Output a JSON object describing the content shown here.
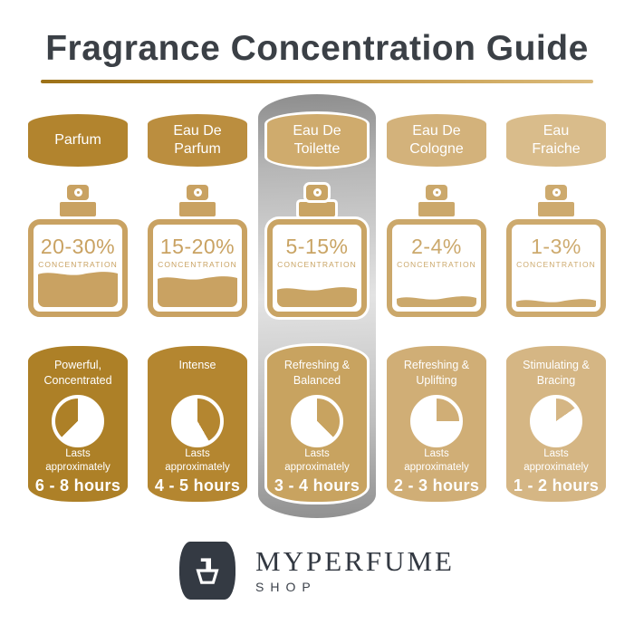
{
  "title": "Fragrance Concentration Guide",
  "labels": {
    "concentration": "CONCENTRATION",
    "lasts": "Lasts\napproximately"
  },
  "brand": {
    "name": "MYPERFUME",
    "sub": "SHOP",
    "logo_icon": "perfume-bottle-icon",
    "logo_bg": "#343a43"
  },
  "accent": {
    "title_color": "#3b4046",
    "underline_gradient": [
      "#9c7118",
      "#dcbc7e"
    ],
    "highlight_silver": [
      "#8d8d8d",
      "#e3e3e3",
      "#909090"
    ]
  },
  "columns": [
    {
      "name": "Parfum",
      "concentration": "20-30%",
      "description": "Powerful,\nConcentrated",
      "duration": "6 - 8 hours",
      "fill_percent": 44,
      "pie_gap": [
        225,
        360
      ],
      "highlighted": false,
      "colors": {
        "banner": "#b2842e",
        "card": "#ad8027",
        "bottle": "#c9a262"
      }
    },
    {
      "name": "Eau De\nParfum",
      "concentration": "15-20%",
      "description": "Intense",
      "duration": "4 - 5 hours",
      "fill_percent": 38,
      "pie_gap": [
        0,
        150
      ],
      "highlighted": false,
      "colors": {
        "banner": "#bb8e3f",
        "card": "#b48630",
        "bottle": "#c9a262"
      }
    },
    {
      "name": "Eau De\nToilette",
      "concentration": "5-15%",
      "description": "Refreshing &\nBalanced",
      "duration": "3 - 4 hours",
      "fill_percent": 26,
      "pie_gap": [
        0,
        135
      ],
      "highlighted": true,
      "colors": {
        "banner": "#cfab6d",
        "card": "#c8a360",
        "bottle": "#c9a464"
      }
    },
    {
      "name": "Eau De\nCologne",
      "concentration": "2-4%",
      "description": "Refreshing &\nUplifting",
      "duration": "2 - 3 hours",
      "fill_percent": 15,
      "pie_gap": [
        0,
        90
      ],
      "highlighted": false,
      "colors": {
        "banner": "#d3b27b",
        "card": "#d0ae76",
        "bottle": "#cba86b"
      }
    },
    {
      "name": "Eau\nFraiche",
      "concentration": "1-3%",
      "description": "Stimulating &\nBracing",
      "duration": "1 - 2 hours",
      "fill_percent": 12,
      "pie_gap": [
        0,
        55
      ],
      "highlighted": false,
      "colors": {
        "banner": "#d9bc8b",
        "card": "#d5b684",
        "bottle": "#cdaa6e"
      }
    }
  ]
}
